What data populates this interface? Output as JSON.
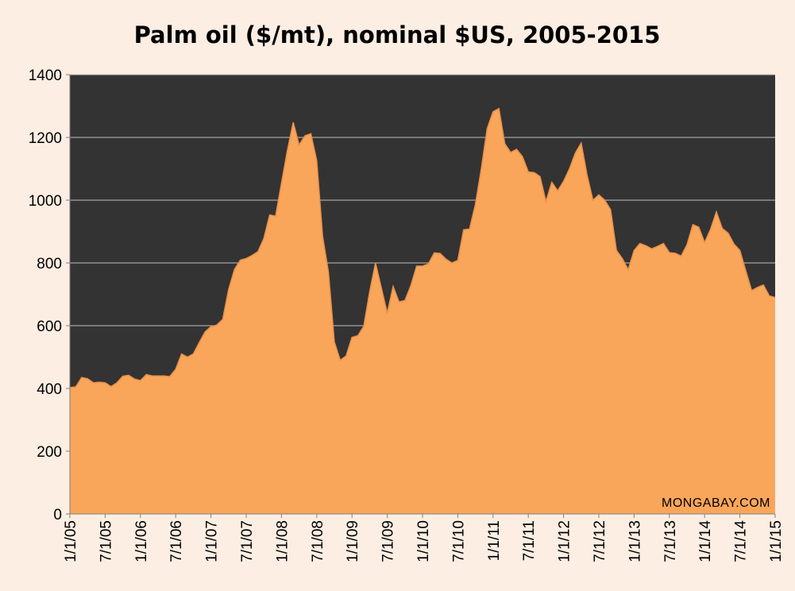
{
  "chart_data": {
    "type": "area",
    "title": "Palm oil ($/mt), nominal $US, 2005-2015",
    "xlabel": "",
    "ylabel": "",
    "ylim": [
      0,
      1400
    ],
    "yticks": [
      "0",
      "200",
      "400",
      "600",
      "800",
      "1000",
      "1200",
      "1400"
    ],
    "xticks": [
      "1/1/05",
      "7/1/05",
      "1/1/06",
      "7/1/06",
      "1/1/07",
      "7/1/07",
      "1/1/08",
      "7/1/08",
      "1/1/09",
      "7/1/09",
      "1/1/10",
      "7/1/10",
      "1/1/11",
      "7/1/11",
      "1/1/12",
      "7/1/12",
      "1/1/13",
      "7/1/13",
      "1/1/14",
      "7/1/14",
      "1/1/15"
    ],
    "grid": "horizontal",
    "watermark": "MONGABAY.COM",
    "colors": {
      "plot_background": "#333333",
      "area_fill": "#f9a65a",
      "area_line": "#e8904a",
      "gridline": "#bfbfbf",
      "page_background": "#fdeee3"
    },
    "x_start": "2005-01",
    "x_step": "monthly",
    "values": [
      403,
      405,
      435,
      431,
      418,
      420,
      418,
      406,
      418,
      439,
      442,
      430,
      425,
      444,
      440,
      440,
      440,
      438,
      461,
      510,
      500,
      510,
      546,
      580,
      597,
      602,
      620,
      715,
      779,
      809,
      814,
      824,
      836,
      878,
      953,
      949,
      1054,
      1158,
      1248,
      1176,
      1205,
      1212,
      1126,
      885,
      770,
      548,
      490,
      504,
      563,
      568,
      598,
      708,
      800,
      720,
      640,
      725,
      676,
      680,
      727,
      790,
      790,
      797,
      832,
      830,
      812,
      800,
      808,
      906,
      908,
      987,
      1100,
      1228,
      1282,
      1292,
      1180,
      1152,
      1162,
      1139,
      1090,
      1088,
      1075,
      996,
      1057,
      1030,
      1060,
      1100,
      1150,
      1182,
      1080,
      1000,
      1017,
      1000,
      970,
      840,
      814,
      779,
      840,
      862,
      855,
      845,
      853,
      862,
      833,
      831,
      822,
      858,
      922,
      914,
      865,
      907,
      963,
      910,
      895,
      860,
      840,
      775,
      712,
      722,
      730,
      695,
      690
    ]
  }
}
